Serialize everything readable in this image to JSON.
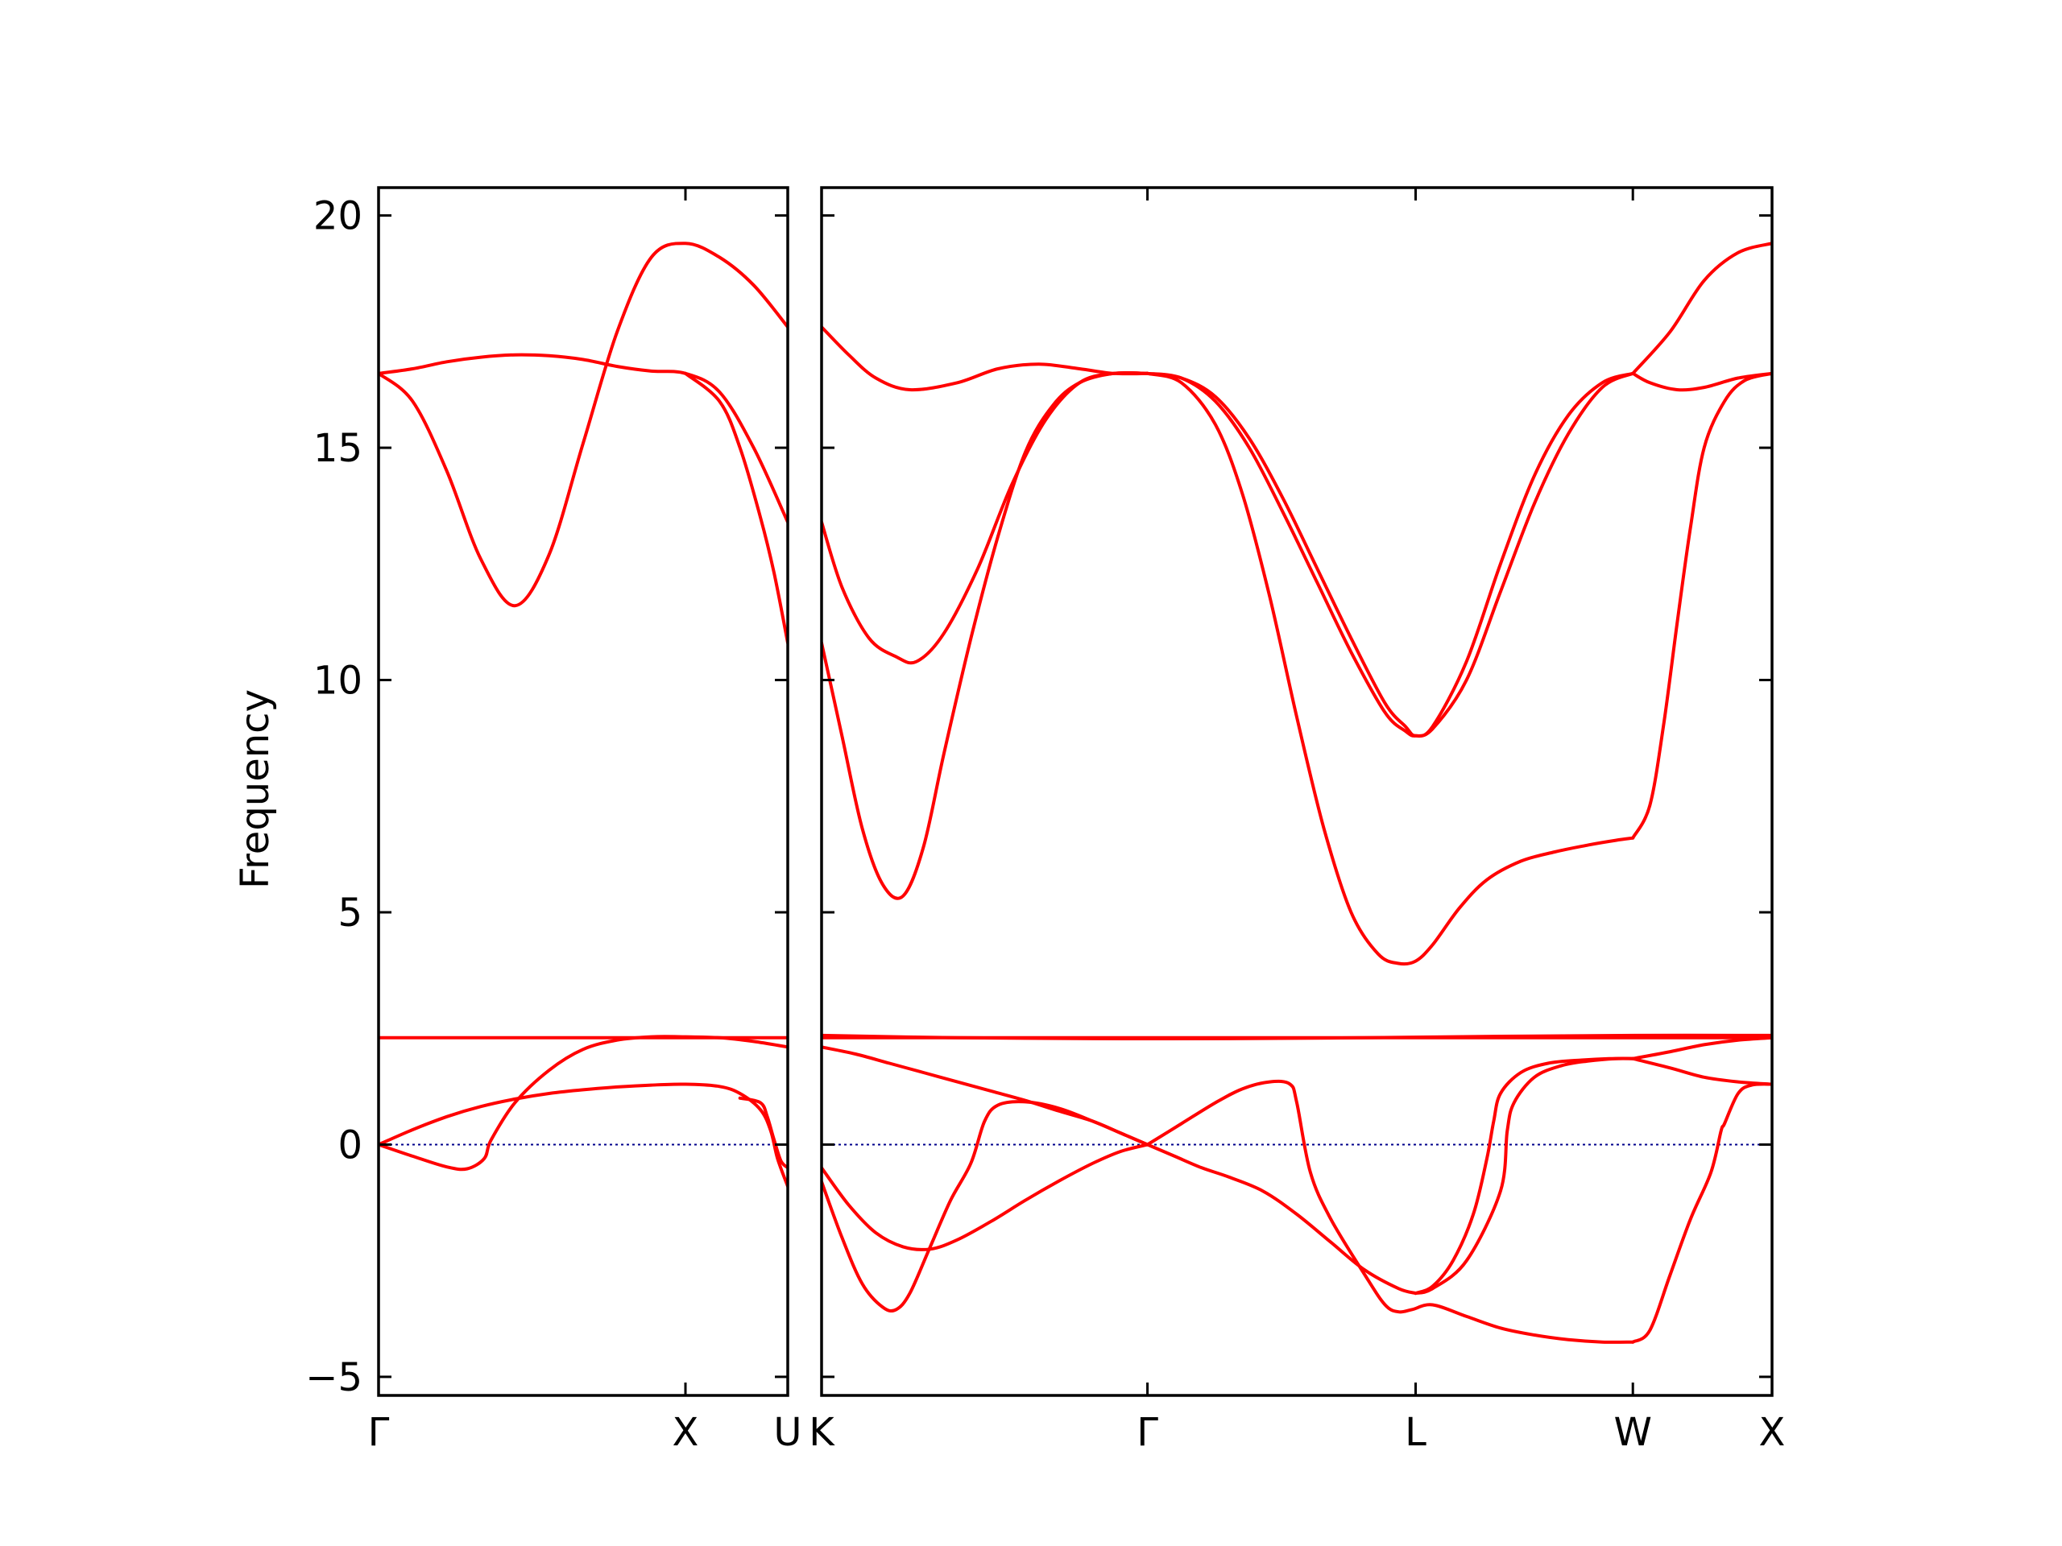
{
  "chart_data": {
    "type": "line",
    "ylabel": "Frequency",
    "ylim": [
      -5.4,
      20.6
    ],
    "yticks": [
      -5,
      0,
      5,
      10,
      15,
      20
    ],
    "ytick_labels": [
      "−5",
      "0",
      "5",
      "10",
      "15",
      "20"
    ],
    "colors": {
      "band": "#ff0000",
      "zero_line": "#00008b",
      "frame": "#000000"
    },
    "grid": false,
    "panels": [
      {
        "x_range": [
          0,
          0.6
        ],
        "ticks": [
          {
            "x": 0,
            "label": "Γ"
          },
          {
            "x": 0.45,
            "label": "X"
          },
          {
            "x": 0.6,
            "label": "U"
          }
        ],
        "series": [
          {
            "x": [
              0,
              0.05,
              0.1,
              0.15,
              0.2,
              0.25,
              0.3,
              0.35,
              0.4,
              0.45,
              0.5,
              0.55,
              0.6
            ],
            "y": [
              16.6,
              16.7,
              16.85,
              16.95,
              17.0,
              16.98,
              16.9,
              16.75,
              16.65,
              16.6,
              16.2,
              15.0,
              13.4
            ]
          },
          {
            "x": [
              0,
              0.05,
              0.1,
              0.15,
              0.2,
              0.25,
              0.3,
              0.35,
              0.4,
              0.45,
              0.5,
              0.55,
              0.6
            ],
            "y": [
              16.6,
              16.0,
              14.5,
              12.6,
              11.6,
              12.7,
              15.1,
              17.5,
              19.1,
              19.4,
              19.1,
              18.5,
              17.6
            ]
          },
          {
            "x": [
              0.45,
              0.5,
              0.53,
              0.56,
              0.58,
              0.6
            ],
            "y": [
              16.6,
              16.0,
              15.0,
              13.5,
              12.3,
              10.8
            ]
          },
          {
            "x": [
              0,
              0.1,
              0.2,
              0.3,
              0.4,
              0.45,
              0.5,
              0.55,
              0.6
            ],
            "y": [
              2.3,
              2.3,
              2.3,
              2.3,
              2.3,
              2.3,
              2.3,
              2.3,
              2.3
            ]
          },
          {
            "x": [
              0,
              0.05,
              0.1,
              0.13,
              0.155,
              0.165,
              0.2,
              0.25,
              0.3,
              0.35,
              0.4,
              0.45,
              0.5,
              0.55,
              0.6
            ],
            "y": [
              0,
              -0.25,
              -0.48,
              -0.52,
              -0.3,
              0.1,
              0.9,
              1.6,
              2.05,
              2.25,
              2.32,
              2.32,
              2.3,
              2.22,
              2.1
            ]
          },
          {
            "x": [
              0,
              0.05,
              0.1,
              0.15,
              0.2,
              0.25,
              0.3,
              0.35,
              0.4,
              0.45,
              0.5,
              0.53,
              0.56,
              0.575,
              0.585,
              0.6
            ],
            "y": [
              0,
              0.32,
              0.6,
              0.82,
              0.98,
              1.1,
              1.18,
              1.24,
              1.28,
              1.3,
              1.25,
              1.1,
              0.75,
              0.3,
              -0.3,
              -0.9
            ]
          },
          {
            "x": [
              0.53,
              0.56,
              0.57,
              0.58,
              0.59,
              0.6
            ],
            "y": [
              1.0,
              0.9,
              0.6,
              0.1,
              -0.35,
              -0.5
            ]
          }
        ]
      },
      {
        "x_range": [
          0,
          1.4
        ],
        "ticks": [
          {
            "x": 0,
            "label": "K"
          },
          {
            "x": 0.48,
            "label": "Γ"
          },
          {
            "x": 0.875,
            "label": "L"
          },
          {
            "x": 1.195,
            "label": "W"
          },
          {
            "x": 1.4,
            "label": "X"
          }
        ],
        "series": [
          {
            "x": [
              0,
              0.04,
              0.08,
              0.13,
              0.2,
              0.26,
              0.32,
              0.38,
              0.43,
              0.48
            ],
            "y": [
              17.6,
              17.0,
              16.5,
              16.25,
              16.4,
              16.7,
              16.8,
              16.7,
              16.6,
              16.6
            ]
          },
          {
            "x": [
              0,
              0.03,
              0.07,
              0.11,
              0.14,
              0.18,
              0.23,
              0.28,
              0.33,
              0.38,
              0.43,
              0.48
            ],
            "y": [
              13.4,
              12.0,
              10.9,
              10.5,
              10.4,
              11.0,
              12.4,
              14.2,
              15.6,
              16.4,
              16.6,
              16.6
            ]
          },
          {
            "x": [
              0,
              0.03,
              0.06,
              0.09,
              0.12,
              0.15,
              0.18,
              0.22,
              0.26,
              0.3,
              0.34,
              0.38,
              0.43,
              0.48
            ],
            "y": [
              10.8,
              8.8,
              6.8,
              5.6,
              5.35,
              6.4,
              8.4,
              10.9,
              13.1,
              14.9,
              15.9,
              16.4,
              16.6,
              16.6
            ]
          },
          {
            "x": [
              0.48,
              0.53,
              0.58,
              0.63,
              0.68,
              0.73,
              0.78,
              0.83,
              0.86,
              0.875,
              0.9,
              0.95,
              1.0,
              1.05,
              1.1,
              1.15,
              1.195
            ],
            "y": [
              16.6,
              16.5,
              16.0,
              15.0,
              13.6,
              12.1,
              10.6,
              9.3,
              8.9,
              8.8,
              8.95,
              10.0,
              11.9,
              13.8,
              15.3,
              16.3,
              16.6
            ]
          },
          {
            "x": [
              0.48,
              0.53,
              0.58,
              0.63,
              0.68,
              0.73,
              0.78,
              0.83,
              0.86,
              0.875,
              0.9,
              0.95,
              1.0,
              1.05,
              1.1,
              1.15,
              1.195
            ],
            "y": [
              16.6,
              16.5,
              16.1,
              15.2,
              13.9,
              12.4,
              10.9,
              9.5,
              9.0,
              8.8,
              9.0,
              10.4,
              12.5,
              14.4,
              15.7,
              16.4,
              16.6
            ]
          },
          {
            "x": [
              0.48,
              0.53,
              0.58,
              0.62,
              0.66,
              0.7,
              0.74,
              0.78,
              0.82,
              0.85,
              0.875,
              0.9,
              0.94,
              0.98,
              1.03,
              1.08,
              1.13,
              1.17,
              1.195
            ],
            "y": [
              16.6,
              16.4,
              15.5,
              14.0,
              11.8,
              9.2,
              6.8,
              5.0,
              4.1,
              3.9,
              3.95,
              4.3,
              5.1,
              5.7,
              6.1,
              6.3,
              6.45,
              6.55,
              6.6
            ]
          },
          {
            "x": [
              1.195,
              1.22,
              1.26,
              1.3,
              1.35,
              1.4
            ],
            "y": [
              16.6,
              16.4,
              16.25,
              16.3,
              16.5,
              16.6
            ]
          },
          {
            "x": [
              1.195,
              1.25,
              1.3,
              1.35,
              1.4
            ],
            "y": [
              16.6,
              17.5,
              18.6,
              19.2,
              19.4
            ]
          },
          {
            "x": [
              1.195,
              1.22,
              1.24,
              1.26,
              1.28,
              1.3,
              1.33,
              1.36,
              1.4
            ],
            "y": [
              6.6,
              7.3,
              9.0,
              11.2,
              13.3,
              15.0,
              16.0,
              16.45,
              16.6
            ]
          },
          {
            "x": [
              0,
              0.2,
              0.4,
              0.6,
              0.8,
              1.0,
              1.2,
              1.4
            ],
            "y": [
              2.3,
              2.3,
              2.3,
              2.3,
              2.3,
              2.3,
              2.3,
              2.3
            ]
          },
          {
            "x": [
              0,
              0.2,
              0.4,
              0.6,
              0.8,
              1.0,
              1.2,
              1.4
            ],
            "y": [
              2.35,
              2.3,
              2.28,
              2.28,
              2.3,
              2.33,
              2.35,
              2.35
            ]
          },
          {
            "x": [
              0,
              0.05,
              0.1,
              0.15,
              0.2,
              0.25,
              0.3,
              0.35,
              0.4,
              0.44,
              0.48,
              0.52,
              0.56,
              0.6,
              0.65,
              0.7,
              0.75,
              0.8,
              0.85,
              0.875
            ],
            "y": [
              2.1,
              1.95,
              1.75,
              1.55,
              1.35,
              1.15,
              0.95,
              0.72,
              0.5,
              0.25,
              0,
              -0.25,
              -0.5,
              -0.7,
              -1.0,
              -1.5,
              -2.1,
              -2.7,
              -3.1,
              -3.2
            ]
          },
          {
            "x": [
              0,
              0.03,
              0.06,
              0.09,
              0.11,
              0.13,
              0.16,
              0.19,
              0.22,
              0.24,
              0.26,
              0.3,
              0.35,
              0.4,
              0.44,
              0.48
            ],
            "y": [
              -0.8,
              -2.0,
              -3.0,
              -3.5,
              -3.55,
              -3.2,
              -2.2,
              -1.2,
              -0.4,
              0.5,
              0.85,
              0.92,
              0.78,
              0.5,
              0.25,
              0
            ]
          },
          {
            "x": [
              0,
              0.04,
              0.08,
              0.12,
              0.16,
              0.2,
              0.25,
              0.3,
              0.35,
              0.4,
              0.44,
              0.48
            ],
            "y": [
              -0.5,
              -1.3,
              -1.9,
              -2.2,
              -2.25,
              -2.05,
              -1.65,
              -1.2,
              -0.78,
              -0.4,
              -0.15,
              0
            ]
          },
          {
            "x": [
              0.48,
              0.53,
              0.58,
              0.62,
              0.66,
              0.69,
              0.7,
              0.72,
              0.75,
              0.8,
              0.83,
              0.85,
              0.87,
              0.9,
              0.95,
              1.0,
              1.05,
              1.1,
              1.15,
              1.195
            ],
            "y": [
              0,
              0.45,
              0.9,
              1.2,
              1.35,
              1.3,
              0.9,
              -0.6,
              -1.6,
              -2.8,
              -3.45,
              -3.6,
              -3.55,
              -3.45,
              -3.7,
              -3.95,
              -4.1,
              -4.2,
              -4.25,
              -4.25
            ]
          },
          {
            "x": [
              0.875,
              0.9,
              0.93,
              0.96,
              0.98,
              0.99,
              1.0,
              1.03,
              1.07,
              1.12,
              1.16,
              1.195
            ],
            "y": [
              -3.2,
              -3.05,
              -2.5,
              -1.5,
              -0.3,
              0.5,
              1.1,
              1.55,
              1.75,
              1.82,
              1.85,
              1.85
            ]
          },
          {
            "x": [
              0.875,
              0.9,
              0.95,
              1.0,
              1.01,
              1.02,
              1.05,
              1.09,
              1.13,
              1.17,
              1.195
            ],
            "y": [
              -3.2,
              -3.1,
              -2.5,
              -1.0,
              0.3,
              0.9,
              1.45,
              1.7,
              1.8,
              1.85,
              1.85
            ]
          },
          {
            "x": [
              1.195,
              1.22,
              1.25,
              1.28,
              1.31,
              1.325,
              1.33,
              1.35,
              1.37,
              1.4
            ],
            "y": [
              -4.25,
              -4.0,
              -2.8,
              -1.6,
              -0.6,
              0.3,
              0.45,
              1.1,
              1.28,
              1.3
            ]
          },
          {
            "x": [
              1.195,
              1.25,
              1.3,
              1.35,
              1.4
            ],
            "y": [
              1.85,
              1.65,
              1.45,
              1.35,
              1.3
            ]
          },
          {
            "x": [
              1.195,
              1.25,
              1.3,
              1.35,
              1.4
            ],
            "y": [
              1.85,
              2.0,
              2.15,
              2.25,
              2.3
            ]
          }
        ]
      }
    ]
  }
}
